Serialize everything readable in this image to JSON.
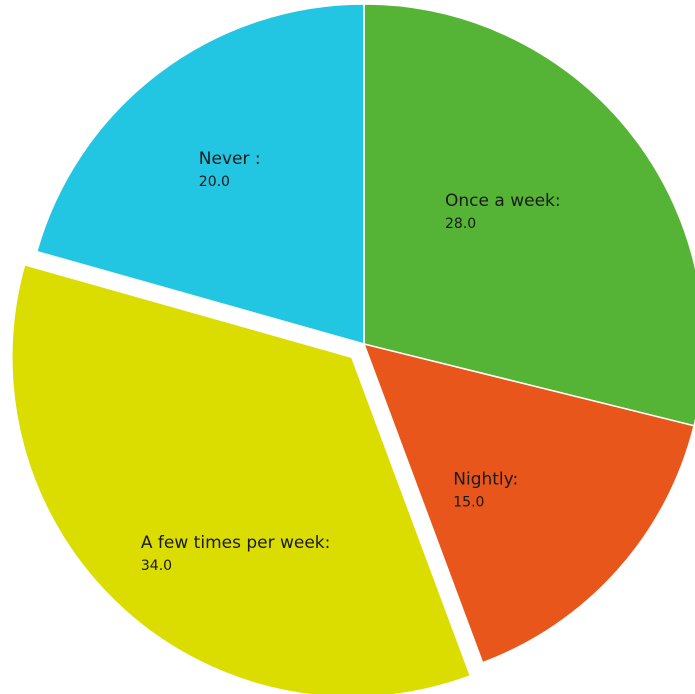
{
  "chart_data": {
    "type": "pie",
    "title": "",
    "start_angle_deg": 0,
    "direction": "clockwise",
    "slices": [
      {
        "label": "Once a week:",
        "value": 28.0,
        "value_text": "28.0",
        "color": "#55b435",
        "exploded": false
      },
      {
        "label": "Nightly:",
        "value": 15.0,
        "value_text": "15.0",
        "color": "#e8561c",
        "exploded": false
      },
      {
        "label": "A few times per week:",
        "value": 34.0,
        "value_text": "34.0",
        "color": "#dbdd00",
        "exploded": true
      },
      {
        "label": "Never :",
        "value": 20.0,
        "value_text": "20.0",
        "color": "#22c6e2",
        "exploded": false
      }
    ]
  }
}
